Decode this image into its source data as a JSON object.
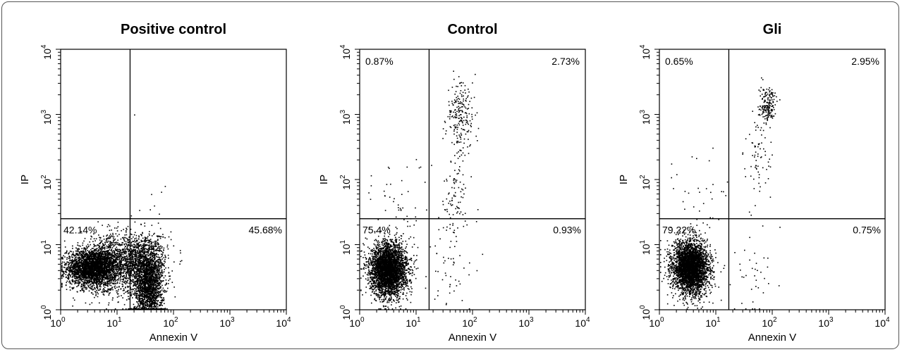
{
  "chart_data": [
    {
      "type": "scatter",
      "title": "Positive control",
      "xlabel": "Annexin V",
      "ylabel": "IP",
      "x_scale": "log",
      "y_scale": "log",
      "xlim": [
        1,
        10000
      ],
      "ylim": [
        1,
        10000
      ],
      "x_ticks": [
        "10",
        "10",
        "10",
        "10",
        "10"
      ],
      "x_tick_exponents": [
        "0",
        "1",
        "2",
        "3",
        "4"
      ],
      "y_ticks": [
        "10",
        "10",
        "10",
        "10",
        "10"
      ],
      "y_tick_exponents": [
        "0",
        "1",
        "2",
        "3",
        "4"
      ],
      "gate": {
        "x": 17,
        "y": 25
      },
      "quadrant_percentages": {
        "upper_left": "",
        "upper_right": "",
        "lower_left": "42.14%",
        "lower_right": "45.68%"
      },
      "clusters": [
        {
          "cx": 3.5,
          "cy": 4.5,
          "sx": 0.22,
          "sy": 0.14,
          "n": 2600
        },
        {
          "cx": 8,
          "cy": 5,
          "sx": 0.28,
          "sy": 0.22,
          "n": 1300
        },
        {
          "cx": 35,
          "cy": 2.2,
          "sx": 0.13,
          "sy": 0.25,
          "n": 1700
        },
        {
          "cx": 30,
          "cy": 6,
          "sx": 0.2,
          "sy": 0.2,
          "n": 1000
        }
      ],
      "sparse_points": [
        [
          40,
          60
        ],
        [
          60,
          65
        ],
        [
          45,
          40
        ],
        [
          38,
          35
        ],
        [
          70,
          80
        ],
        [
          55,
          30
        ],
        [
          20,
          1000
        ]
      ]
    },
    {
      "type": "scatter",
      "title": "Control",
      "xlabel": "Annexin V",
      "ylabel": "IP",
      "x_scale": "log",
      "y_scale": "log",
      "xlim": [
        1,
        10000
      ],
      "ylim": [
        1,
        10000
      ],
      "x_ticks": [
        "10",
        "10",
        "10",
        "10",
        "10"
      ],
      "x_tick_exponents": [
        "0",
        "1",
        "2",
        "3",
        "4"
      ],
      "y_ticks": [
        "10",
        "10",
        "10",
        "10",
        "10"
      ],
      "y_tick_exponents": [
        "0",
        "1",
        "2",
        "3",
        "4"
      ],
      "gate": {
        "x": 17,
        "y": 25
      },
      "quadrant_percentages": {
        "upper_left": "0.87%",
        "upper_right": "2.73%",
        "lower_left": "75.4%",
        "lower_right": "0.93%"
      },
      "clusters": [
        {
          "cx": 3.2,
          "cy": 4.2,
          "sx": 0.16,
          "sy": 0.2,
          "n": 3500
        },
        {
          "cx": 60,
          "cy": 900,
          "sx": 0.12,
          "sy": 0.3,
          "n": 220
        },
        {
          "cx": 50,
          "cy": 60,
          "sx": 0.12,
          "sy": 0.3,
          "n": 80
        },
        {
          "cx": 40,
          "cy": 4,
          "sx": 0.2,
          "sy": 0.4,
          "n": 60
        },
        {
          "cx": 5,
          "cy": 40,
          "sx": 0.25,
          "sy": 0.4,
          "n": 50
        }
      ],
      "sparse_points": []
    },
    {
      "type": "scatter",
      "title": "Gli",
      "xlabel": "Annexin V",
      "ylabel": "IP",
      "x_scale": "log",
      "y_scale": "log",
      "xlim": [
        1,
        10000
      ],
      "ylim": [
        1,
        10000
      ],
      "x_ticks": [
        "10",
        "10",
        "10",
        "10",
        "10"
      ],
      "x_tick_exponents": [
        "0",
        "1",
        "2",
        "3",
        "4"
      ],
      "y_ticks": [
        "10",
        "10",
        "10",
        "10",
        "10"
      ],
      "y_tick_exponents": [
        "0",
        "1",
        "2",
        "3",
        "4"
      ],
      "gate": {
        "x": 17,
        "y": 25
      },
      "quadrant_percentages": {
        "upper_left": "0.65%",
        "upper_right": "2.95%",
        "lower_left": "79.22%",
        "lower_right": "0.75%"
      },
      "clusters": [
        {
          "cx": 3.5,
          "cy": 4.5,
          "sx": 0.16,
          "sy": 0.2,
          "n": 3500
        },
        {
          "cx": 80,
          "cy": 1400,
          "sx": 0.08,
          "sy": 0.13,
          "n": 180
        },
        {
          "cx": 55,
          "cy": 200,
          "sx": 0.12,
          "sy": 0.4,
          "n": 70
        },
        {
          "cx": 40,
          "cy": 4,
          "sx": 0.2,
          "sy": 0.4,
          "n": 40
        },
        {
          "cx": 5,
          "cy": 40,
          "sx": 0.25,
          "sy": 0.4,
          "n": 40
        }
      ],
      "sparse_points": []
    }
  ]
}
